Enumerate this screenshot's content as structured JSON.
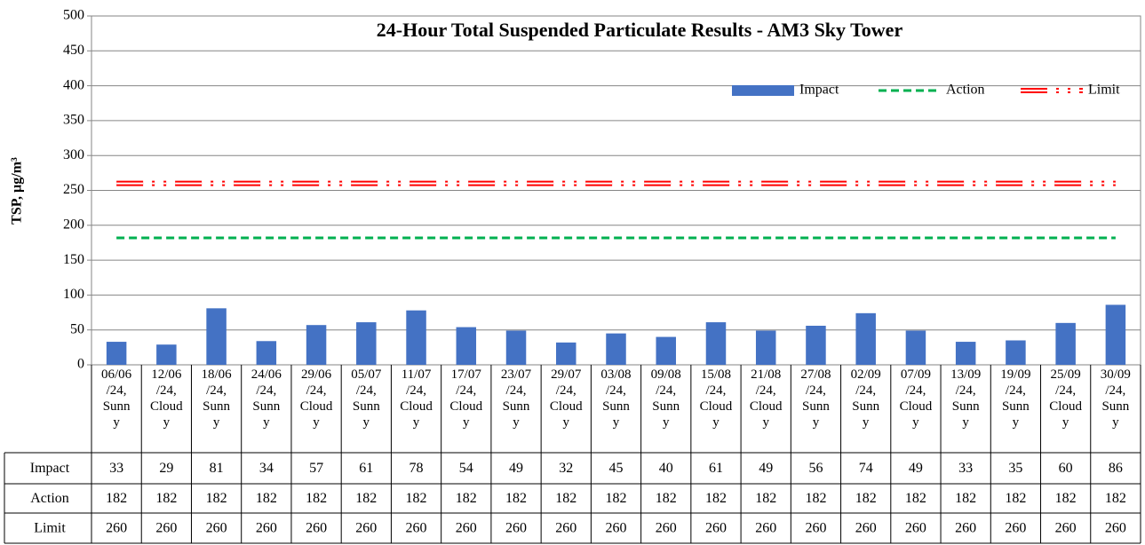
{
  "chart_data": {
    "type": "bar",
    "title": "24-Hour Total Suspended Particulate Results - AM3 Sky Tower",
    "y_label": "TSP, µg/m³",
    "categories": [
      "06/06/24, Sunny",
      "12/06/24, Cloudy",
      "18/06/24, Sunny",
      "24/06/24, Sunny",
      "29/06/24, Cloudy",
      "05/07/24, Sunny",
      "11/07/24, Cloudy",
      "17/07/24, Cloudy",
      "23/07/24, Sunny",
      "29/07/24, Cloudy",
      "03/08/24, Sunny",
      "09/08/24, Sunny",
      "15/08/24, Cloudy",
      "21/08/24, Cloudy",
      "27/08/24, Sunny",
      "02/09/24, Sunny",
      "07/09/24, Cloudy",
      "13/09/24, Sunny",
      "19/09/24, Sunny",
      "25/09/24, Cloudy",
      "30/09/24, Sunny"
    ],
    "series": [
      {
        "name": "Impact",
        "type": "bar",
        "color": "#4472c4",
        "values": [
          33,
          29,
          81,
          34,
          57,
          61,
          78,
          54,
          49,
          32,
          45,
          40,
          61,
          49,
          56,
          74,
          49,
          33,
          35,
          60,
          86
        ]
      },
      {
        "name": "Action",
        "type": "line",
        "color": "#00b050",
        "values": [
          182,
          182,
          182,
          182,
          182,
          182,
          182,
          182,
          182,
          182,
          182,
          182,
          182,
          182,
          182,
          182,
          182,
          182,
          182,
          182,
          182
        ]
      },
      {
        "name": "Limit",
        "type": "line",
        "color": "#ff0000",
        "values": [
          260,
          260,
          260,
          260,
          260,
          260,
          260,
          260,
          260,
          260,
          260,
          260,
          260,
          260,
          260,
          260,
          260,
          260,
          260,
          260,
          260
        ]
      }
    ],
    "ylim": [
      0,
      500
    ],
    "yticks": [
      0,
      50,
      100,
      150,
      200,
      250,
      300,
      350,
      400,
      450,
      500
    ],
    "grid": true,
    "legend": "upper right",
    "data_table": true
  }
}
